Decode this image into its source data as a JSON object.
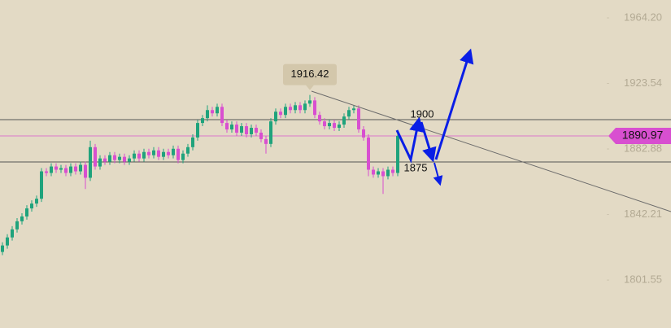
{
  "chart_data": {
    "type": "candlestick",
    "up_color": "#1fa37c",
    "down_color": "#d84fd0",
    "ylim": [
      1771.8,
      1975.3
    ],
    "yticks": [
      {
        "value": 1964.2,
        "label": "1964.20"
      },
      {
        "value": 1923.54,
        "label": "1923.54"
      },
      {
        "value": 1882.88,
        "label": "1882.88"
      },
      {
        "value": 1842.21,
        "label": "1842.21"
      },
      {
        "value": 1801.55,
        "label": "1801.55"
      }
    ],
    "levels": [
      1901.1,
      1874.8
    ],
    "current_price": 1890.97,
    "current_color": "#d84fd0",
    "annotations": [
      "1900",
      "1875"
    ],
    "high_label_index": 63,
    "ohlc": [
      [
        1819,
        1825,
        1817,
        1823
      ],
      [
        1823,
        1830,
        1821,
        1828
      ],
      [
        1828,
        1835,
        1826,
        1833
      ],
      [
        1833,
        1840,
        1831,
        1838
      ],
      [
        1838,
        1843,
        1836,
        1841
      ],
      [
        1841,
        1848,
        1839,
        1846
      ],
      [
        1846,
        1851,
        1844,
        1849
      ],
      [
        1849,
        1854,
        1847,
        1852
      ],
      [
        1852,
        1871,
        1850,
        1869
      ],
      [
        1869,
        1871,
        1866,
        1868
      ],
      [
        1868,
        1874,
        1866,
        1872
      ],
      [
        1872,
        1874,
        1868,
        1870
      ],
      [
        1870,
        1873,
        1868,
        1871
      ],
      [
        1871,
        1873,
        1866,
        1868
      ],
      [
        1868,
        1874,
        1866,
        1872
      ],
      [
        1872,
        1874,
        1867,
        1869
      ],
      [
        1869,
        1875,
        1867,
        1873
      ],
      [
        1873,
        1875,
        1858,
        1865
      ],
      [
        1865,
        1888,
        1863,
        1884
      ],
      [
        1884,
        1886,
        1870,
        1872
      ],
      [
        1872,
        1879,
        1870,
        1877
      ],
      [
        1877,
        1879,
        1873,
        1875
      ],
      [
        1875,
        1881,
        1873,
        1879
      ],
      [
        1879,
        1881,
        1874,
        1876
      ],
      [
        1876,
        1880,
        1874,
        1878
      ],
      [
        1878,
        1880,
        1873,
        1875
      ],
      [
        1875,
        1879,
        1873,
        1877
      ],
      [
        1877,
        1882,
        1875,
        1880
      ],
      [
        1880,
        1882,
        1875,
        1877
      ],
      [
        1877,
        1883,
        1875,
        1881
      ],
      [
        1881,
        1883,
        1877,
        1879
      ],
      [
        1879,
        1884,
        1877,
        1882
      ],
      [
        1882,
        1884,
        1876,
        1878
      ],
      [
        1878,
        1883,
        1876,
        1881
      ],
      [
        1881,
        1883,
        1877,
        1879
      ],
      [
        1879,
        1885,
        1877,
        1883
      ],
      [
        1883,
        1885,
        1874,
        1876
      ],
      [
        1876,
        1882,
        1874,
        1880
      ],
      [
        1880,
        1886,
        1878,
        1884
      ],
      [
        1884,
        1892,
        1882,
        1890
      ],
      [
        1890,
        1901,
        1888,
        1899
      ],
      [
        1899,
        1904,
        1897,
        1902
      ],
      [
        1902,
        1910,
        1900,
        1907
      ],
      [
        1907,
        1909,
        1903,
        1905
      ],
      [
        1905,
        1911,
        1903,
        1909
      ],
      [
        1909,
        1911,
        1897,
        1899
      ],
      [
        1899,
        1901,
        1893,
        1895
      ],
      [
        1895,
        1900,
        1893,
        1898
      ],
      [
        1898,
        1900,
        1891,
        1893
      ],
      [
        1893,
        1899,
        1891,
        1897
      ],
      [
        1897,
        1899,
        1890,
        1892
      ],
      [
        1892,
        1898,
        1890,
        1896
      ],
      [
        1896,
        1898,
        1891,
        1893
      ],
      [
        1893,
        1895,
        1887,
        1889
      ],
      [
        1889,
        1891,
        1880,
        1886
      ],
      [
        1886,
        1902,
        1884,
        1900
      ],
      [
        1900,
        1908,
        1898,
        1906
      ],
      [
        1906,
        1908,
        1902,
        1904
      ],
      [
        1904,
        1911,
        1902,
        1909
      ],
      [
        1909,
        1911,
        1905,
        1907
      ],
      [
        1907,
        1912,
        1905,
        1910
      ],
      [
        1910,
        1912,
        1905,
        1907
      ],
      [
        1907,
        1913,
        1905,
        1911
      ],
      [
        1911,
        1916.42,
        1909,
        1913
      ],
      [
        1913,
        1915,
        1902,
        1904
      ],
      [
        1904,
        1906,
        1898,
        1900
      ],
      [
        1900,
        1902,
        1895,
        1897
      ],
      [
        1897,
        1901,
        1895,
        1899
      ],
      [
        1899,
        1901,
        1894,
        1896
      ],
      [
        1896,
        1900,
        1894,
        1898
      ],
      [
        1898,
        1905,
        1896,
        1903
      ],
      [
        1903,
        1909,
        1901,
        1907
      ],
      [
        1907,
        1910,
        1905,
        1908
      ],
      [
        1908,
        1910,
        1893,
        1895
      ],
      [
        1895,
        1897,
        1888,
        1890
      ],
      [
        1890,
        1892,
        1866,
        1870
      ],
      [
        1870,
        1872,
        1865,
        1867
      ],
      [
        1867,
        1871,
        1865,
        1869
      ],
      [
        1869,
        1871,
        1855,
        1866
      ],
      [
        1866,
        1872,
        1864,
        1870
      ],
      [
        1870,
        1872,
        1866,
        1868
      ],
      [
        1868,
        1894,
        1866,
        1890.97
      ]
    ]
  }
}
